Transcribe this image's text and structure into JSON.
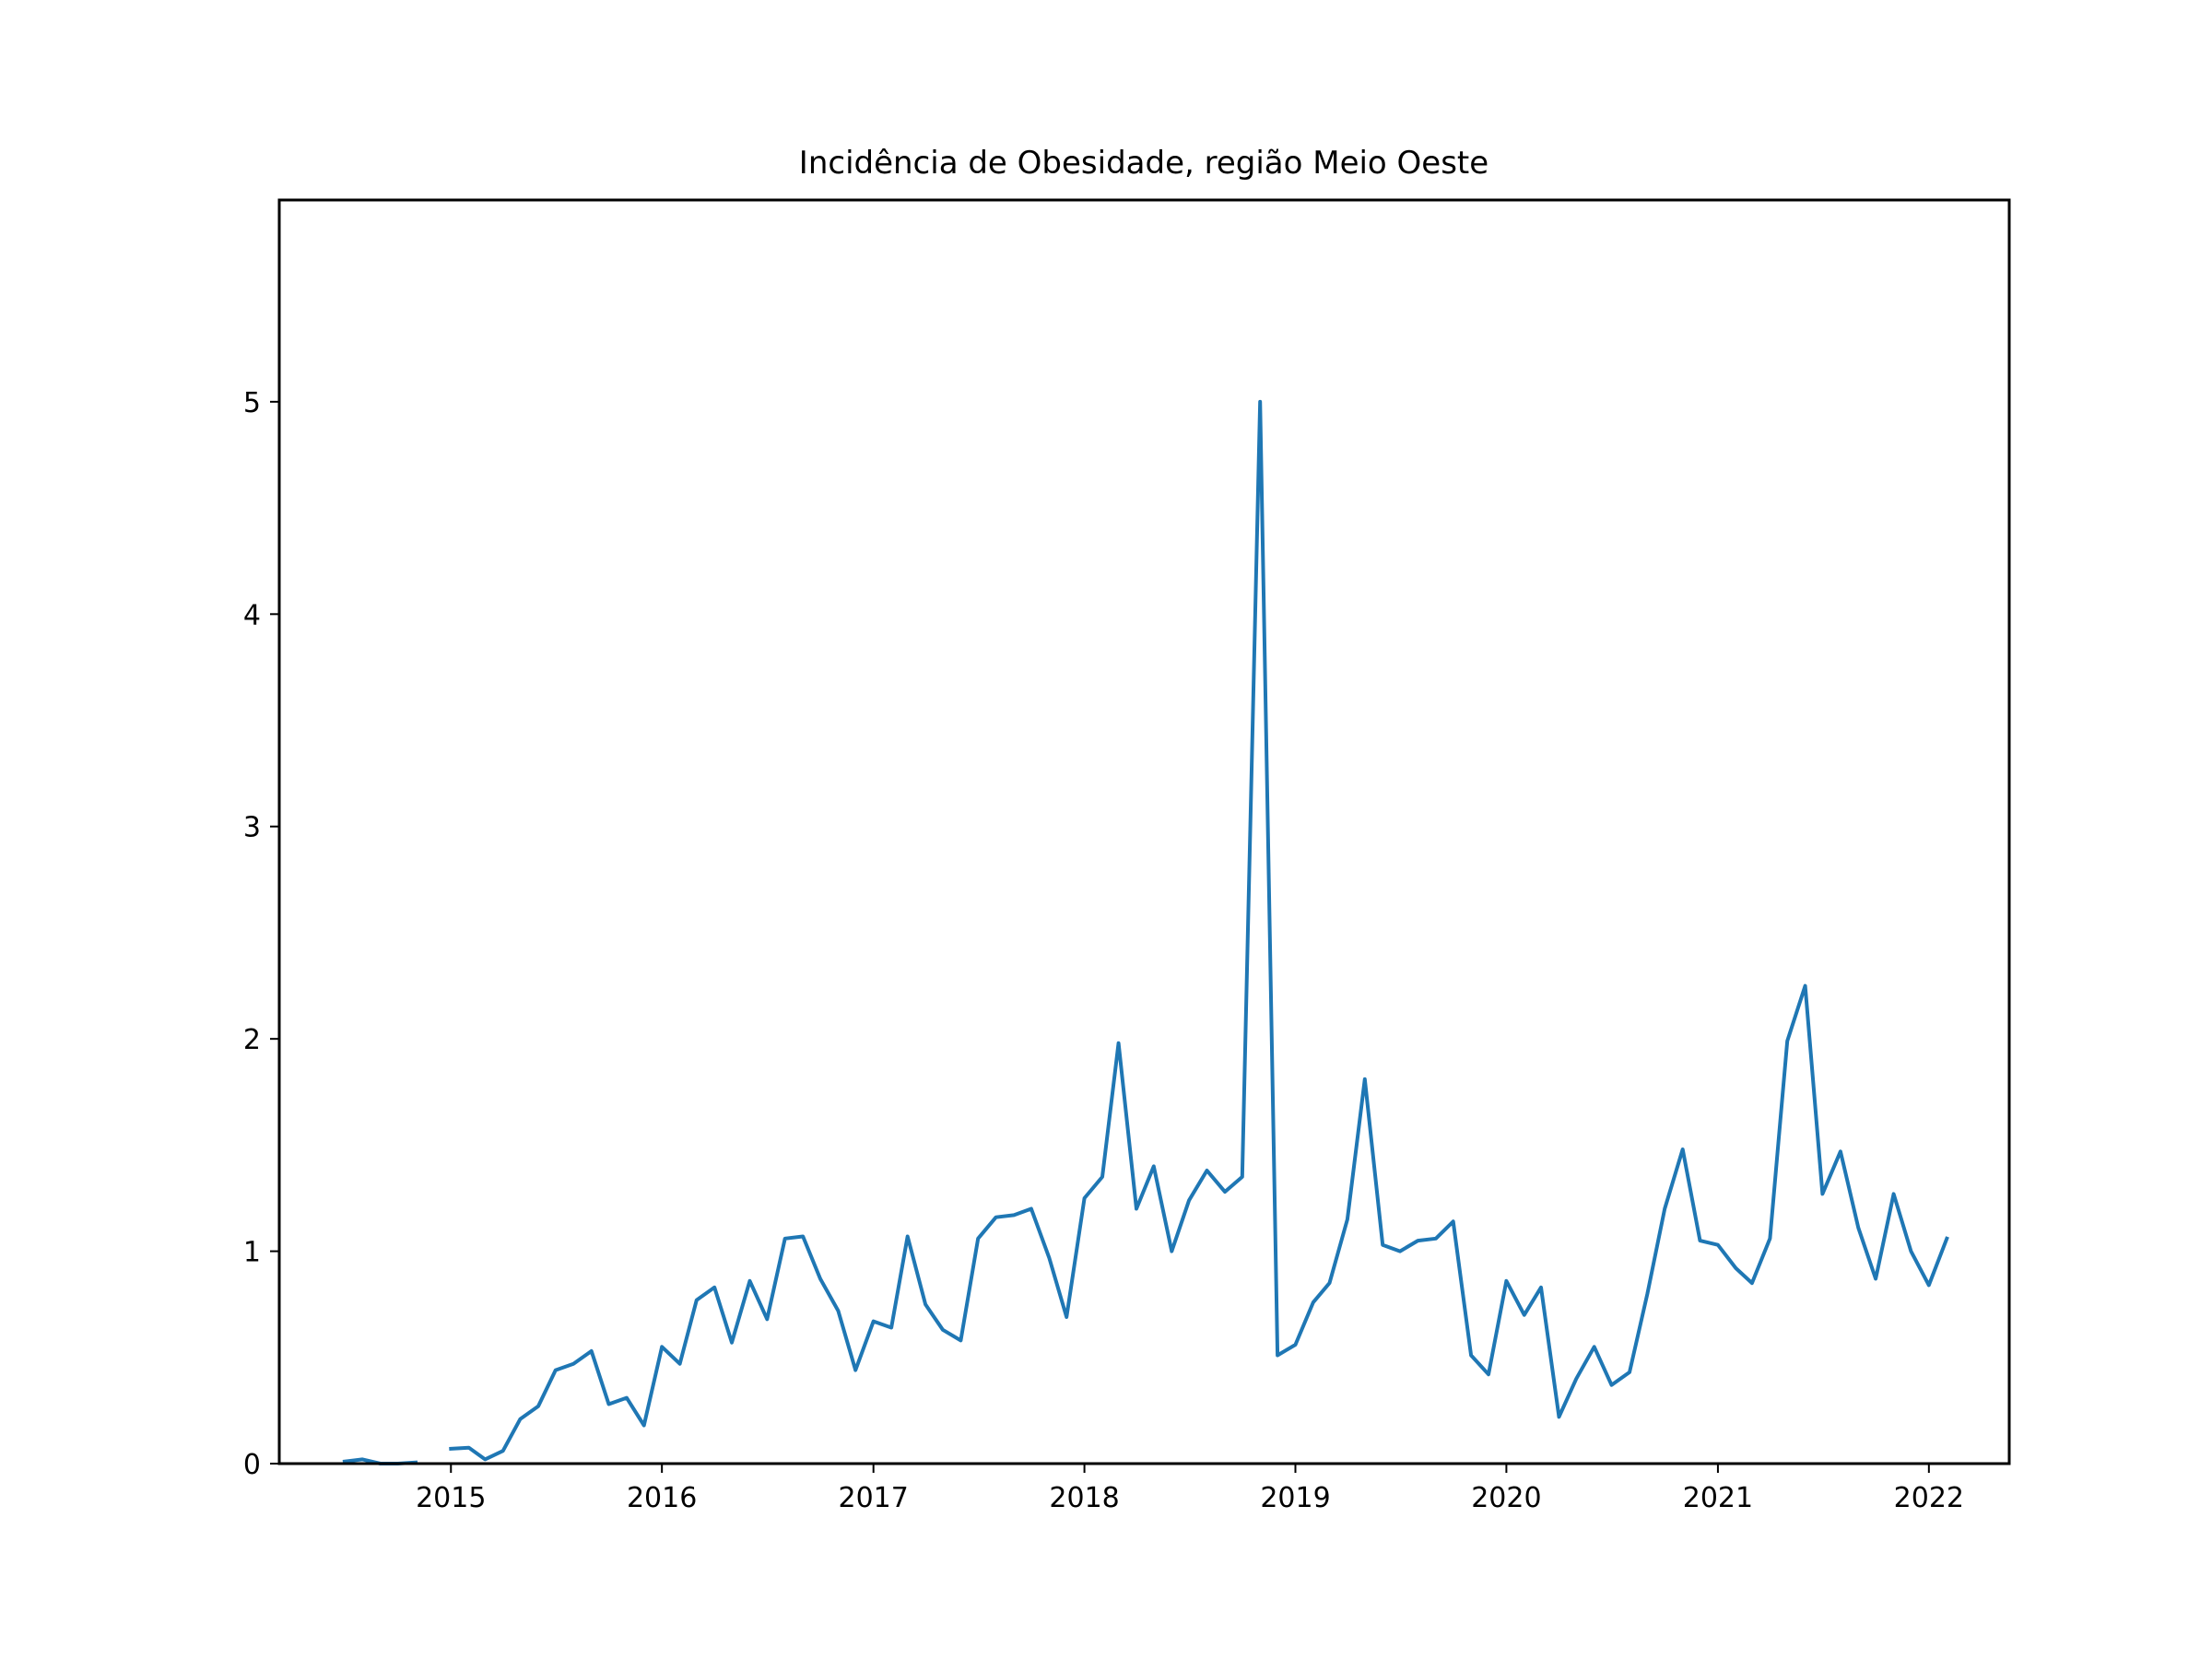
{
  "chart_data": {
    "type": "line",
    "title": "Incidência de Obesidade, região Meio Oeste",
    "xlabel": "",
    "ylabel": "",
    "x_axis_type": "date",
    "xlim": [
      "2014-03-10",
      "2022-05-20"
    ],
    "ylim": [
      0,
      5.95
    ],
    "x_ticks": [
      "2015",
      "2016",
      "2017",
      "2018",
      "2019",
      "2020",
      "2021",
      "2022"
    ],
    "y_ticks": [
      0,
      1,
      2,
      3,
      4,
      5
    ],
    "grid": false,
    "legend": "none",
    "series": [
      {
        "color": "#1f77b4",
        "x": [
          "2014-07-01",
          "2014-08-01",
          "2014-09-01",
          "2014-10-01",
          "2014-11-01",
          "2014-12-01",
          "2015-01-01",
          "2015-02-01",
          "2015-03-01",
          "2015-04-01",
          "2015-05-01",
          "2015-06-01",
          "2015-07-01",
          "2015-08-01",
          "2015-09-01",
          "2015-10-01",
          "2015-11-01",
          "2015-12-01",
          "2016-01-01",
          "2016-02-01",
          "2016-03-01",
          "2016-04-01",
          "2016-05-01",
          "2016-06-01",
          "2016-07-01",
          "2016-08-01",
          "2016-09-01",
          "2016-10-01",
          "2016-11-01",
          "2016-12-01",
          "2017-01-01",
          "2017-02-01",
          "2017-03-01",
          "2017-04-01",
          "2017-05-01",
          "2017-06-01",
          "2017-07-01",
          "2017-08-01",
          "2017-09-01",
          "2017-10-01",
          "2017-11-01",
          "2017-12-01",
          "2018-01-01",
          "2018-02-01",
          "2018-03-01",
          "2018-04-01",
          "2018-05-01",
          "2018-06-01",
          "2018-07-01",
          "2018-08-01",
          "2018-09-01",
          "2018-10-01",
          "2018-11-01",
          "2018-12-01",
          "2019-01-01",
          "2019-02-01",
          "2019-03-01",
          "2019-04-01",
          "2019-05-01",
          "2019-06-01",
          "2019-07-01",
          "2019-08-01",
          "2019-09-01",
          "2019-10-01",
          "2019-11-01",
          "2019-12-01",
          "2020-01-01",
          "2020-02-01",
          "2020-03-01",
          "2020-04-01",
          "2020-05-01",
          "2020-06-01",
          "2020-07-01",
          "2020-08-01",
          "2020-09-01",
          "2020-10-01",
          "2020-11-01",
          "2020-12-01",
          "2021-01-01",
          "2021-02-01",
          "2021-03-01",
          "2021-04-01",
          "2021-05-01",
          "2021-06-01",
          "2021-07-01",
          "2021-08-01",
          "2021-09-01",
          "2021-10-01",
          "2021-11-01",
          "2021-12-01",
          "2022-01-01",
          "2022-02-01"
        ],
        "values": [
          0.01,
          0.02,
          0.0,
          0.0,
          0.005,
          null,
          0.07,
          0.075,
          0.02,
          0.06,
          0.21,
          0.27,
          0.44,
          0.47,
          0.53,
          0.28,
          0.31,
          0.18,
          0.55,
          0.47,
          0.77,
          0.83,
          0.57,
          0.86,
          0.68,
          1.06,
          1.07,
          0.87,
          0.72,
          0.44,
          0.67,
          0.64,
          1.07,
          0.75,
          0.63,
          0.58,
          1.06,
          1.16,
          1.17,
          1.2,
          0.97,
          0.69,
          1.25,
          1.35,
          1.98,
          1.2,
          1.4,
          1.0,
          1.24,
          1.38,
          1.28,
          1.35,
          5.0,
          0.51,
          0.56,
          0.76,
          0.85,
          1.15,
          1.81,
          1.03,
          1.0,
          1.05,
          1.06,
          1.14,
          0.51,
          0.42,
          0.86,
          0.7,
          0.83,
          0.22,
          0.4,
          0.55,
          0.37,
          0.43,
          0.8,
          1.2,
          1.48,
          1.05,
          1.03,
          0.92,
          0.85,
          1.06,
          1.99,
          2.25,
          1.27,
          1.47,
          1.11,
          0.87,
          1.27,
          1.0,
          0.84,
          1.06
        ]
      }
    ]
  }
}
